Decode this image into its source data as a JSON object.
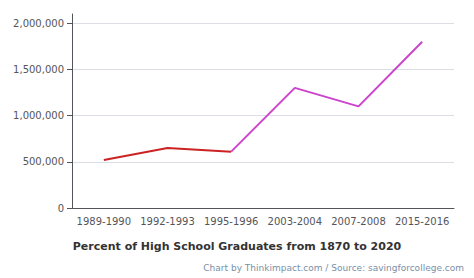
{
  "chart_data": {
    "type": "line",
    "xlabel": "Percent of High School Graduates from 1870 to 2020",
    "annotations": [
      "Chart by Thinkimpact.com / Source: savingforcollege.com"
    ],
    "categories": [
      "1989-1990",
      "1992-1993",
      "1995-1996",
      "2003-2004",
      "2007-2008",
      "2015-2016"
    ],
    "series": [
      {
        "color": "#cc2222",
        "values": [
          520000,
          650000,
          610000,
          null,
          null,
          null
        ]
      },
      {
        "color": "#cc44cc",
        "values": [
          null,
          null,
          610000,
          1300000,
          1100000,
          1800000
        ]
      }
    ],
    "ylim": [
      0,
      2100000
    ],
    "yticks": [
      0,
      {
        "value": 500000,
        "label": "500,000"
      },
      {
        "value": 1000000,
        "label": "1,000,000"
      },
      {
        "value": 1500000,
        "label": "1,500,000"
      },
      {
        "value": 2000000,
        "label": "2,000,000"
      }
    ],
    "grid": true
  }
}
